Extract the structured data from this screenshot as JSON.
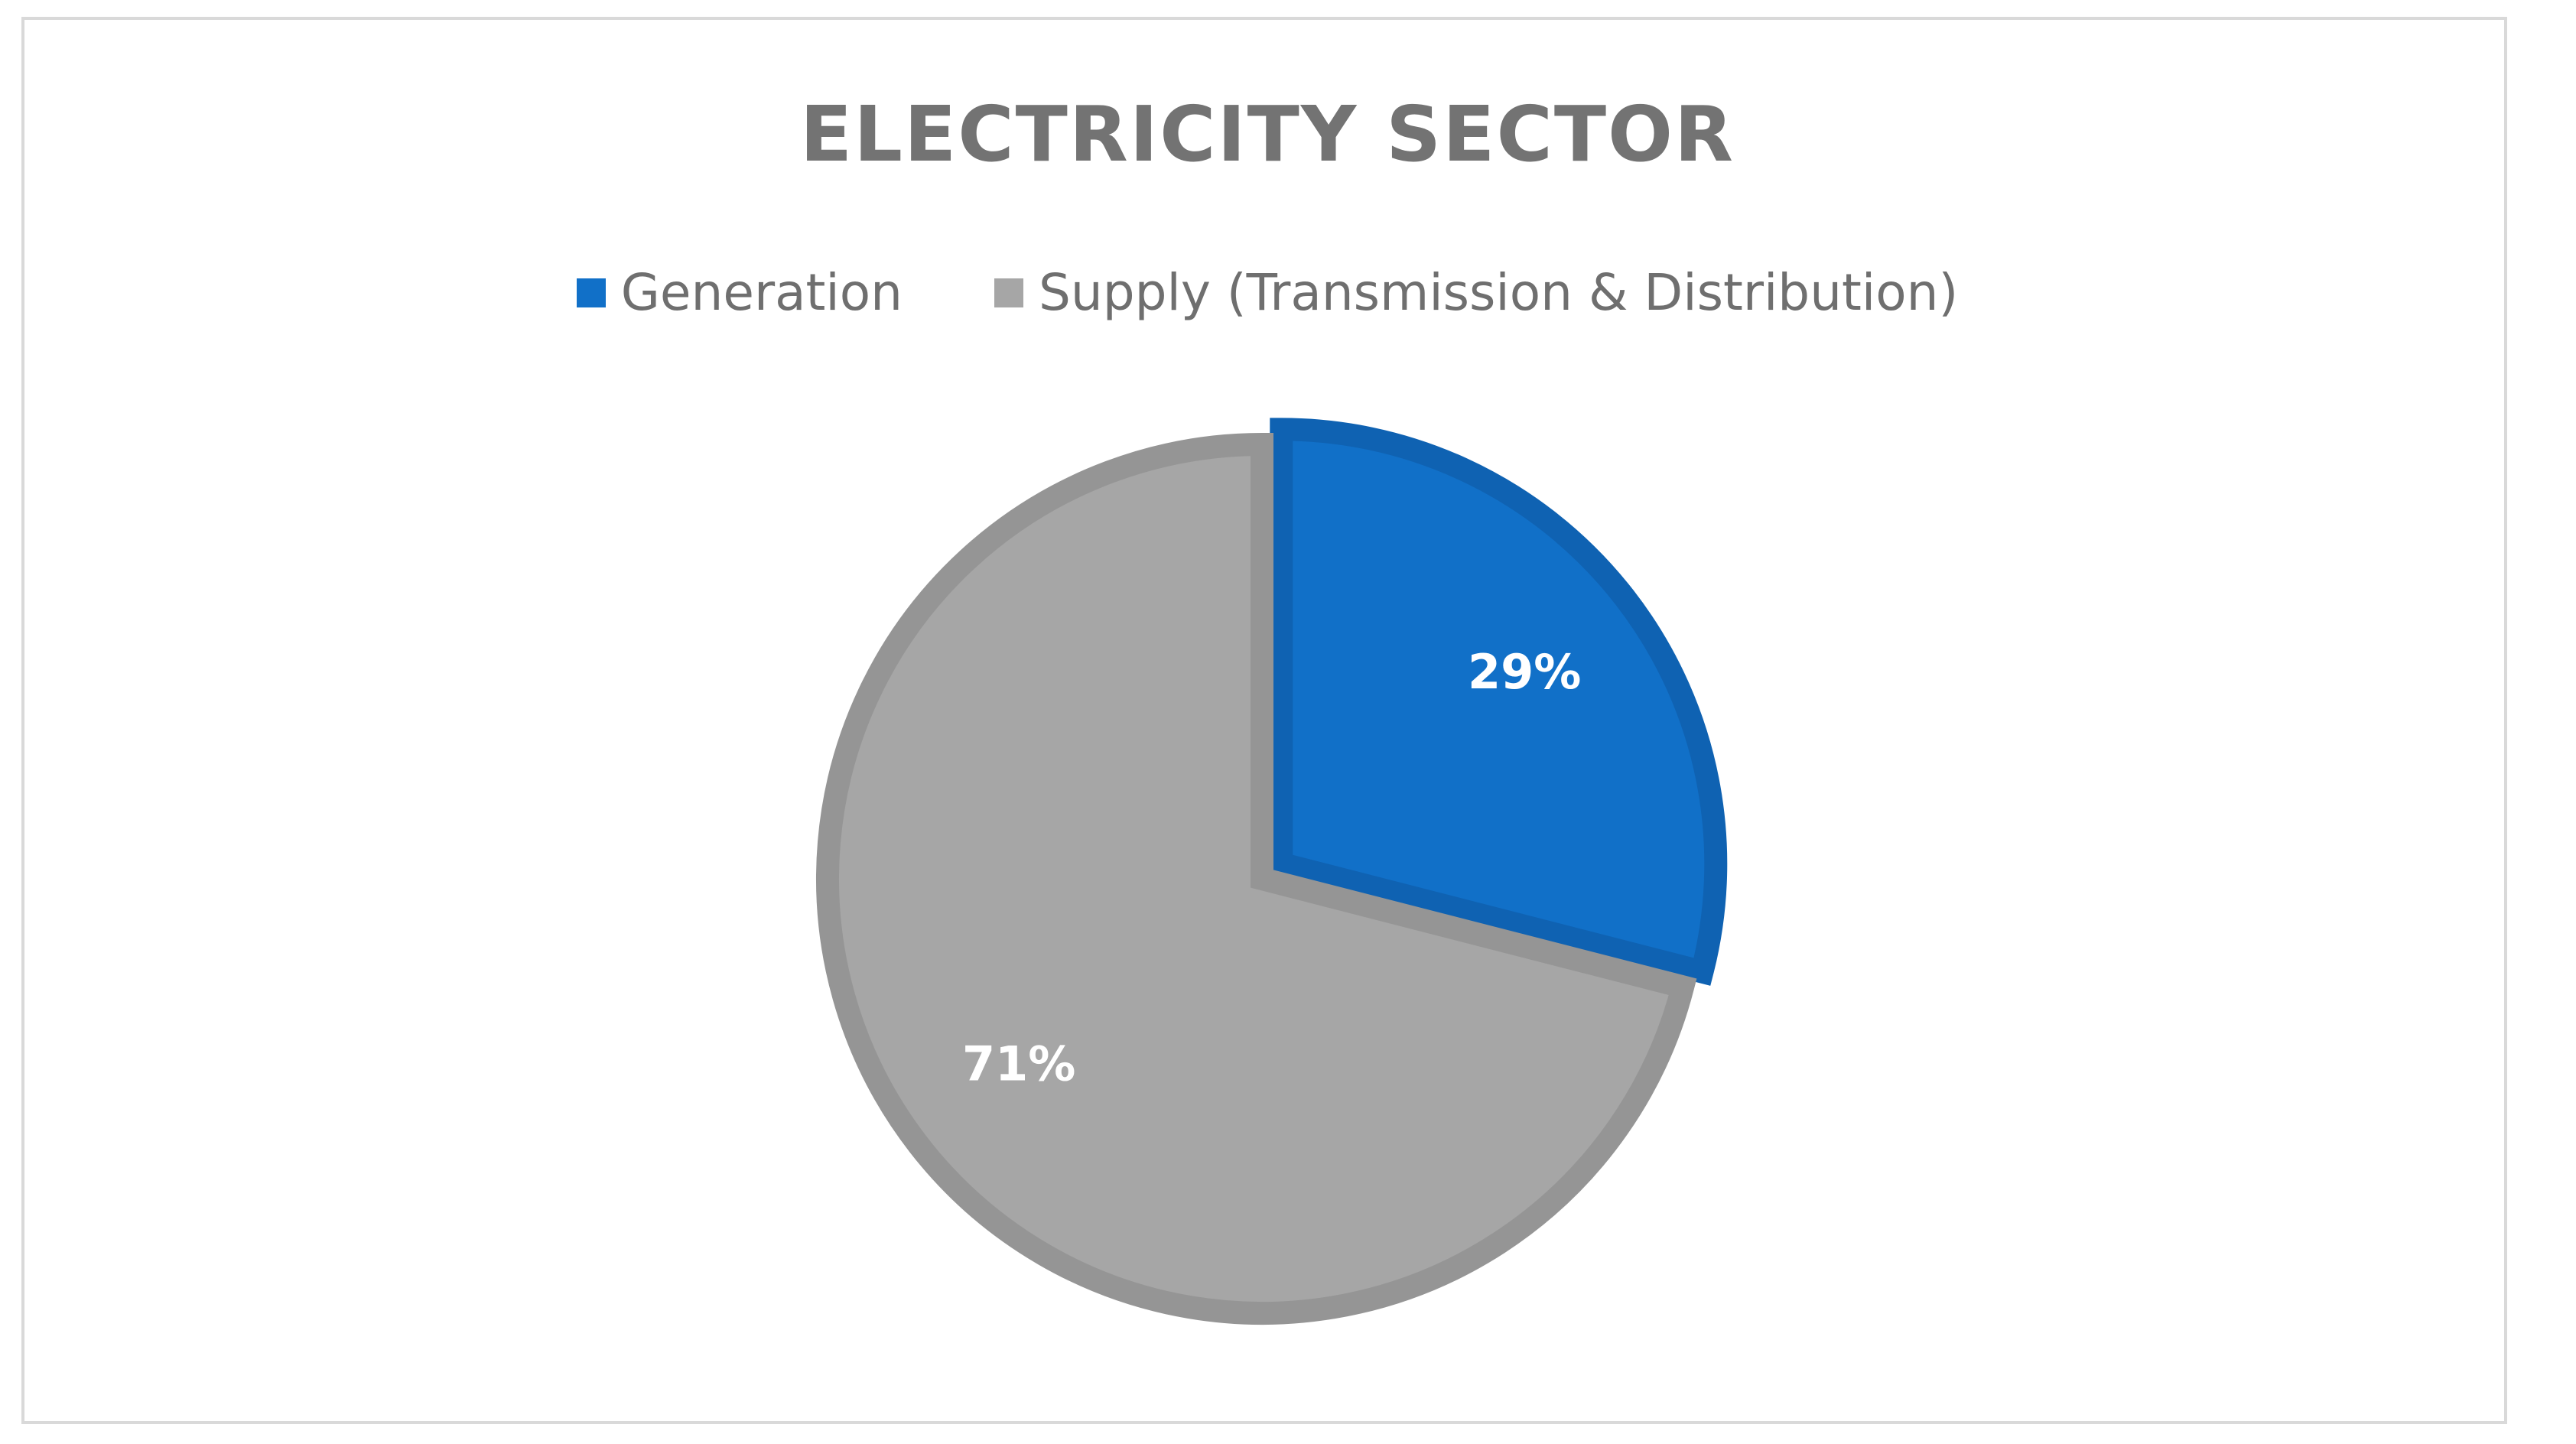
{
  "chart_data": {
    "type": "pie",
    "title": "ELECTRICITY SECTOR",
    "categories": [
      "Generation",
      "Supply (Transmission & Distribution)"
    ],
    "values": [
      29,
      71
    ],
    "data_labels": [
      "29%",
      "71%"
    ],
    "colors": [
      "#1170c8",
      "#a6a6a6"
    ],
    "border_colors": [
      "#0f62b2",
      "#959595"
    ],
    "legend_position": "top",
    "start_angle_deg": 0,
    "exploded_slice": "Generation"
  }
}
